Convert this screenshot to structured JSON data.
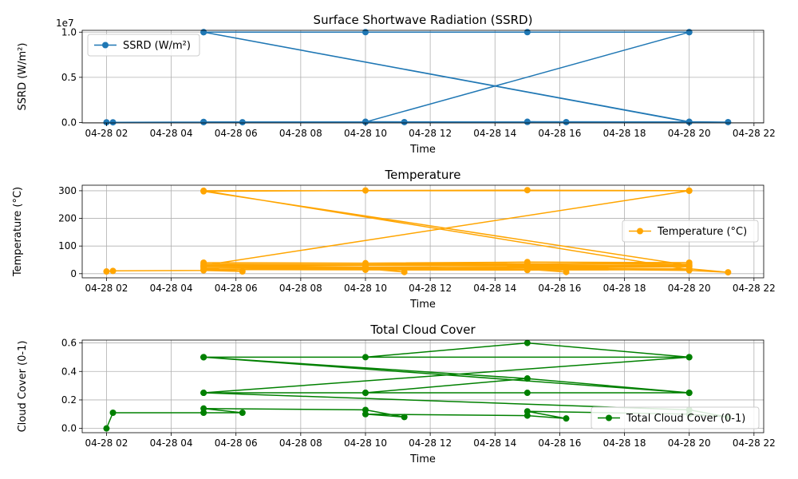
{
  "figure": {
    "background": "#ffffff"
  },
  "chart_data": [
    {
      "type": "line",
      "title": "Surface Shortwave Radiation (SSRD)",
      "xlabel": "Time",
      "ylabel": "SSRD (W/m²)",
      "offset_text": "1e7",
      "color": "#1f77b4",
      "legend_position": "upper left",
      "grid": true,
      "xlim": [
        1.25,
        22.3
      ],
      "ylim": [
        -0.05,
        10.2
      ],
      "x_ticks": [
        2,
        4,
        6,
        8,
        10,
        12,
        14,
        16,
        18,
        20,
        22
      ],
      "x_tick_labels": [
        "04-28 02",
        "04-28 04",
        "04-28 06",
        "04-28 08",
        "04-28 10",
        "04-28 12",
        "04-28 14",
        "04-28 16",
        "04-28 18",
        "04-28 20",
        "04-28 22"
      ],
      "y_ticks": [
        0,
        5,
        10
      ],
      "y_tick_labels": [
        "0.0",
        "0.5",
        "1.0"
      ],
      "series": [
        {
          "name": "SSRD (W/m²)",
          "x": [
            2.0,
            2.2,
            5.0,
            6.2,
            5.0,
            10.0,
            11.2,
            10.0,
            15.0,
            16.2,
            15.0,
            20.0,
            21.2,
            20.0,
            5.0,
            20.0,
            15.0,
            10.0,
            5.0,
            20.0,
            5.0,
            10.0,
            20.0
          ],
          "y": [
            0.02,
            0.02,
            0.05,
            0.03,
            0.06,
            0.06,
            0.04,
            0.08,
            0.06,
            0.04,
            0.08,
            0.06,
            0.04,
            0.08,
            10.0,
            10.0,
            10.0,
            10.0,
            10.0,
            0.05,
            0.05,
            0.06,
            10.0
          ]
        }
      ]
    },
    {
      "type": "line",
      "title": "Temperature",
      "xlabel": "Time",
      "ylabel": "Temperature (°C)",
      "color": "#ffa500",
      "legend_position": "center right",
      "grid": true,
      "xlim": [
        1.25,
        22.3
      ],
      "ylim": [
        -15,
        320
      ],
      "x_ticks": [
        2,
        4,
        6,
        8,
        10,
        12,
        14,
        16,
        18,
        20,
        22
      ],
      "x_tick_labels": [
        "04-28 02",
        "04-28 04",
        "04-28 06",
        "04-28 08",
        "04-28 10",
        "04-28 12",
        "04-28 14",
        "04-28 16",
        "04-28 18",
        "04-28 20",
        "04-28 22"
      ],
      "y_ticks": [
        0,
        100,
        200,
        300
      ],
      "y_tick_labels": [
        "0",
        "100",
        "200",
        "300"
      ],
      "series": [
        {
          "name": "Temperature (°C)",
          "x": [
            2.0,
            2.2,
            5.0,
            6.2,
            5.0,
            10.0,
            11.2,
            10.0,
            15.0,
            16.2,
            15.0,
            20.0,
            21.2,
            20.0,
            5.0,
            10.0,
            15.0,
            20.0,
            5.0,
            10.0,
            15.0,
            20.0,
            5.0,
            10.0,
            15.0,
            20.0,
            5.0,
            10.0,
            15.0,
            20.0,
            5.0,
            10.0,
            15.0,
            20.0,
            5.0,
            20.0,
            15.0,
            10.0,
            5.0,
            20.0,
            5.0,
            20.0
          ],
          "y": [
            8,
            10,
            12,
            8,
            20,
            22,
            6,
            18,
            16,
            6,
            20,
            18,
            5,
            12,
            28,
            30,
            32,
            28,
            35,
            33,
            36,
            34,
            40,
            38,
            42,
            40,
            25,
            24,
            26,
            25,
            15,
            14,
            13,
            15,
            300,
            300,
            302,
            301,
            298,
            30,
            30,
            300
          ]
        }
      ]
    },
    {
      "type": "line",
      "title": "Total Cloud Cover",
      "xlabel": "Time",
      "ylabel": "Cloud Cover (0-1)",
      "color": "#008000",
      "legend_position": "lower right",
      "grid": true,
      "xlim": [
        1.25,
        22.3
      ],
      "ylim": [
        -0.03,
        0.62
      ],
      "x_ticks": [
        2,
        4,
        6,
        8,
        10,
        12,
        14,
        16,
        18,
        20,
        22
      ],
      "x_tick_labels": [
        "04-28 02",
        "04-28 04",
        "04-28 06",
        "04-28 08",
        "04-28 10",
        "04-28 12",
        "04-28 14",
        "04-28 16",
        "04-28 18",
        "04-28 20",
        "04-28 22"
      ],
      "y_ticks": [
        0,
        0.2,
        0.4,
        0.6
      ],
      "y_tick_labels": [
        "0.0",
        "0.2",
        "0.4",
        "0.6"
      ],
      "series": [
        {
          "name": "Total Cloud Cover (0-1)",
          "x": [
            2.0,
            2.2,
            5.0,
            6.2,
            5.0,
            10.0,
            11.2,
            10.0,
            15.0,
            16.2,
            15.0,
            20.0,
            21.2,
            20.0,
            5.0,
            10.0,
            15.0,
            20.0,
            5.0,
            10.0,
            15.0,
            20.0,
            5.0,
            10.0,
            15.0,
            20.0,
            5.0,
            20.0,
            5.0,
            15.0,
            20.0
          ],
          "y": [
            0.0,
            0.11,
            0.11,
            0.11,
            0.14,
            0.13,
            0.08,
            0.1,
            0.09,
            0.07,
            0.12,
            0.1,
            0.08,
            0.13,
            0.25,
            0.25,
            0.25,
            0.25,
            0.5,
            0.5,
            0.6,
            0.5,
            0.25,
            0.25,
            0.35,
            0.25,
            0.5,
            0.5,
            0.5,
            0.35,
            0.25
          ]
        }
      ]
    }
  ]
}
